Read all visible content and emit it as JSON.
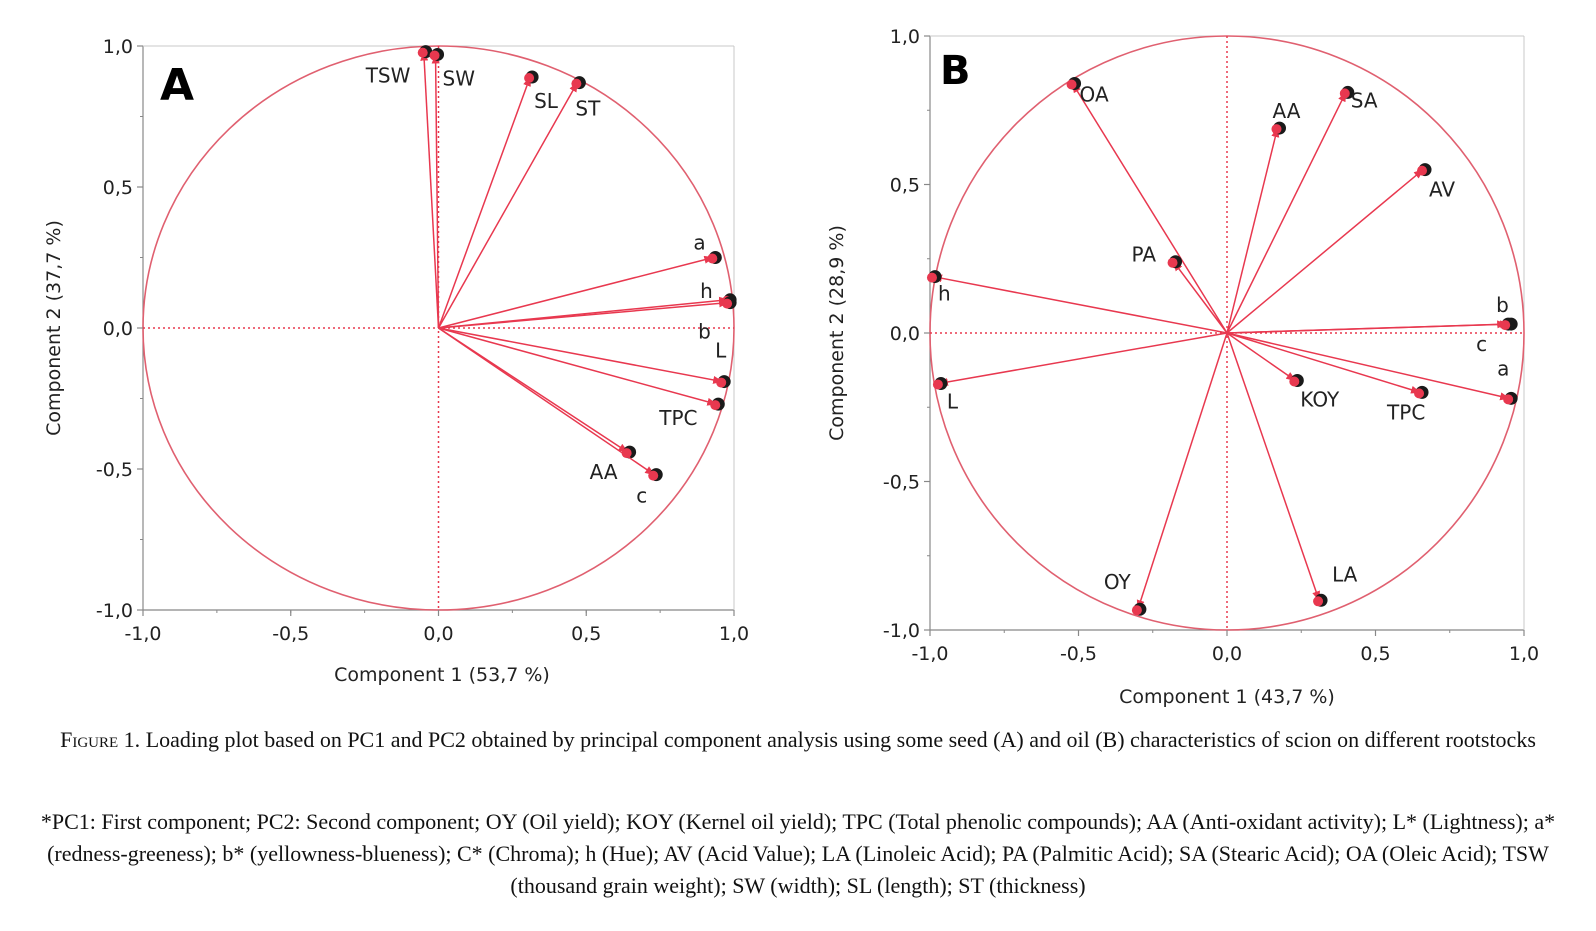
{
  "chart_data": [
    {
      "type": "scatter",
      "panel": "A",
      "xlabel": "Component 1  (53,7 %)",
      "ylabel": "Component 2  (37,7 %)",
      "xlim": [
        -1.0,
        1.0
      ],
      "ylim": [
        -1.0,
        1.0
      ],
      "xticks": [
        "-1,0",
        "-0,5",
        "0,0",
        "0,5",
        "1,0"
      ],
      "yticks": [
        "1,0",
        "0,5",
        "0,0",
        "-0,5",
        "-1,0"
      ],
      "grid": false,
      "legend": "none",
      "points": [
        {
          "label": "TSW",
          "x": -0.05,
          "y": 0.98
        },
        {
          "label": "SW",
          "x": -0.01,
          "y": 0.97
        },
        {
          "label": "SL",
          "x": 0.31,
          "y": 0.89
        },
        {
          "label": "ST",
          "x": 0.47,
          "y": 0.87
        },
        {
          "label": "a",
          "x": 0.93,
          "y": 0.25
        },
        {
          "label": "h",
          "x": 0.98,
          "y": 0.1
        },
        {
          "label": "b",
          "x": 0.98,
          "y": 0.09
        },
        {
          "label": "L",
          "x": 0.96,
          "y": -0.19
        },
        {
          "label": "TPC",
          "x": 0.94,
          "y": -0.27
        },
        {
          "label": "AA",
          "x": 0.64,
          "y": -0.44
        },
        {
          "label": "c",
          "x": 0.73,
          "y": -0.52
        }
      ]
    },
    {
      "type": "scatter",
      "panel": "B",
      "xlabel": "Component 1  (43,7 %)",
      "ylabel": "Component 2  (28,9 %)",
      "xlim": [
        -1.0,
        1.0
      ],
      "ylim": [
        -1.0,
        1.0
      ],
      "xticks": [
        "-1,0",
        "-0,5",
        "0,0",
        "0,5",
        "1,0"
      ],
      "yticks": [
        "1,0",
        "0,5",
        "0,0",
        "-0,5",
        "-1,0"
      ],
      "grid": false,
      "legend": "none",
      "points": [
        {
          "label": "OA",
          "x": -0.52,
          "y": 0.84
        },
        {
          "label": "AA",
          "x": 0.17,
          "y": 0.69
        },
        {
          "label": "SA",
          "x": 0.4,
          "y": 0.81
        },
        {
          "label": "AV",
          "x": 0.66,
          "y": 0.55
        },
        {
          "label": "PA",
          "x": -0.18,
          "y": 0.24
        },
        {
          "label": "h",
          "x": -0.99,
          "y": 0.19
        },
        {
          "label": "b",
          "x": 0.95,
          "y": 0.03
        },
        {
          "label": "c",
          "x": 0.94,
          "y": 0.03
        },
        {
          "label": "a",
          "x": 0.95,
          "y": -0.22
        },
        {
          "label": "L",
          "x": -0.97,
          "y": -0.17
        },
        {
          "label": "KOY",
          "x": 0.23,
          "y": -0.16
        },
        {
          "label": "TPC",
          "x": 0.65,
          "y": -0.2
        },
        {
          "label": "OY",
          "x": -0.3,
          "y": -0.93
        },
        {
          "label": "LA",
          "x": 0.31,
          "y": -0.9
        }
      ]
    }
  ],
  "colors": {
    "accent": "#e8384f",
    "circle": "#e06070",
    "axis": "#888888",
    "dot": "#1a1a1a"
  },
  "caption": {
    "figure_label": "Figure 1.",
    "text": "Loading plot based on PC1 and PC2 obtained by principal component analysis using some seed (A) and oil (B) characteristics of scion on different rootstocks"
  },
  "note": "*PC1: First component; PC2: Second component; OY (Oil yield); KOY (Kernel oil yield); TPC (Total phenolic compounds); AA (Anti-oxidant activity); L* (Lightness); a* (redness-greeness); b* (yellowness-blueness); C* (Chroma); h (Hue); AV (Acid Value); LA (Linoleic Acid); PA (Palmitic Acid); SA (Stearic Acid); OA (Oleic Acid); TSW (thousand grain weight); SW (width); SL (length); ST (thickness)"
}
